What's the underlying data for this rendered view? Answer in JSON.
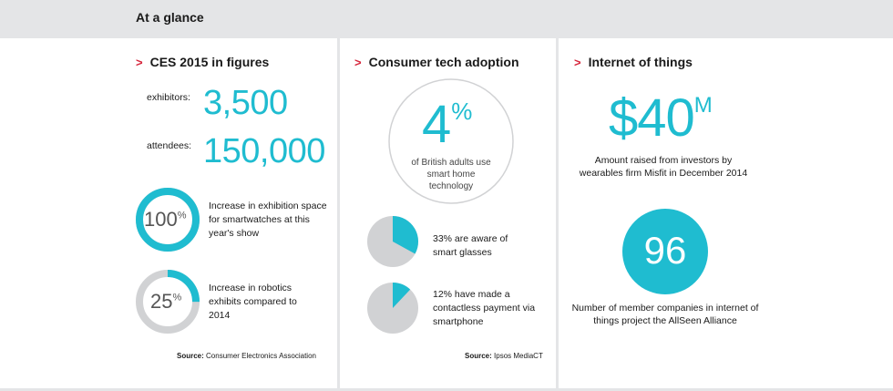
{
  "header": {
    "title": "At a glance"
  },
  "col1": {
    "title": "CES 2015 in figures",
    "exhibitors_label": "exhibitors:",
    "exhibitors_value": "3,500",
    "attendees_label": "attendees:",
    "attendees_value": "150,000",
    "stats": [
      {
        "value": "100",
        "unit": "%",
        "fraction": 1.0,
        "text": "Increase in exhibition space for smartwatches at this year's show"
      },
      {
        "value": "25",
        "unit": "%",
        "fraction": 0.25,
        "text": "Increase in robotics exhibits compared to 2014"
      }
    ],
    "source_label": "Source:",
    "source_text": "Consumer Electronics Association"
  },
  "col2": {
    "title": "Consumer tech adoption",
    "headline_value": "4",
    "headline_unit": "%",
    "headline_text": "of British adults use smart home technology",
    "pies": [
      {
        "fraction": 0.33,
        "text": "33% are aware of smart glasses"
      },
      {
        "fraction": 0.12,
        "text": "12% have made a contactless payment via smartphone"
      }
    ],
    "source_label": "Source:",
    "source_text": "Ipsos MediaCT"
  },
  "col3": {
    "title": "Internet of things",
    "money_value": "$40",
    "money_unit": "M",
    "money_text": "Amount raised from investors by wearables firm Misfit in December 2014",
    "circle_value": "96",
    "circle_text": "Number of member companies in internet of things project the AllSeen Alliance"
  },
  "colors": {
    "accent": "#1fbcd0",
    "chevron": "#d6243a",
    "gray": "#d1d2d4",
    "band": "#e4e5e7"
  }
}
